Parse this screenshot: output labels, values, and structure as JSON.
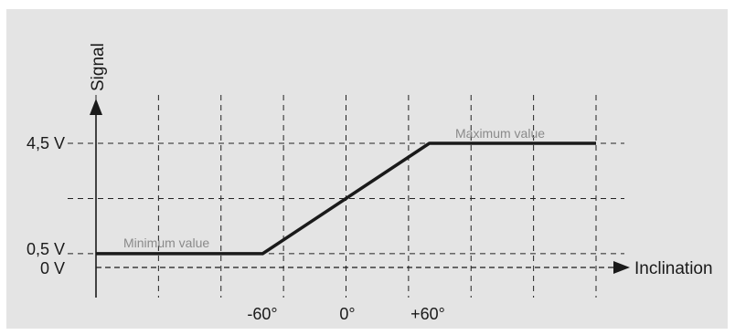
{
  "chart_data": {
    "type": "line",
    "xlabel": "Inclination",
    "ylabel": "Signal",
    "x_tick_labels": [
      "-60°",
      "0°",
      "+60°"
    ],
    "y_tick_labels": [
      "0 V",
      "0,5 V",
      "4,5 V"
    ],
    "xlim": [
      -180,
      180
    ],
    "ylim": [
      0,
      5.5
    ],
    "series": [
      {
        "x": [
          -180,
          -60,
          60,
          180
        ],
        "y": [
          0.5,
          0.5,
          4.5,
          4.5
        ]
      }
    ],
    "annotations": [
      {
        "text": "Minimum value"
      },
      {
        "text": "Maximum value"
      }
    ],
    "grid": true,
    "line_color": "#1a1a1a",
    "grid_color": "#222222",
    "annotation_color": "#8a8a8a",
    "background_color": "#e4e4e4"
  }
}
